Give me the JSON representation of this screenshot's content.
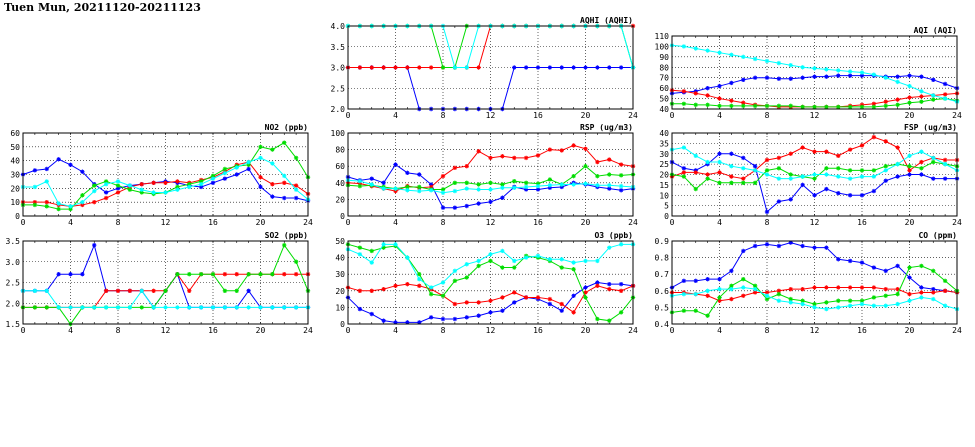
{
  "page": {
    "title": "Tuen Mun, 20211120-20211123"
  },
  "colors": {
    "series": [
      "#0000ff",
      "#ff0000",
      "#00dd00",
      "#00ffff"
    ],
    "grid": "#000000"
  },
  "chart_data": [
    {
      "type": "line",
      "title": "AQHI (AQHI)",
      "ylim": [
        2.0,
        4.0
      ],
      "yticks": [
        "2.0",
        "2.5",
        "3.0",
        "3.5",
        "4.0"
      ],
      "xticks": [
        "0",
        "4",
        "8",
        "12",
        "16",
        "20",
        "24"
      ],
      "series": [
        {
          "values": [
            3,
            3,
            3,
            3,
            3,
            3,
            2,
            2,
            2,
            2,
            2,
            2,
            2,
            2,
            3,
            3,
            3,
            3,
            3,
            3,
            3,
            3,
            3,
            3,
            3
          ]
        },
        {
          "values": [
            3,
            3,
            3,
            3,
            3,
            3,
            3,
            3,
            3,
            3,
            3,
            3,
            4,
            4,
            4,
            4,
            4,
            4,
            4,
            4,
            4,
            4,
            4,
            4,
            4
          ]
        },
        {
          "values": [
            4,
            4,
            4,
            4,
            4,
            4,
            4,
            4,
            3,
            3,
            4,
            4,
            4,
            4,
            4,
            4,
            4,
            4,
            4,
            4,
            4,
            4,
            4,
            4,
            3
          ]
        },
        {
          "values": [
            4,
            4,
            4,
            4,
            4,
            4,
            4,
            4,
            4,
            3,
            3,
            4,
            4,
            4,
            4,
            4,
            4,
            4,
            4,
            4,
            4,
            4,
            4,
            4,
            3
          ]
        }
      ]
    },
    {
      "type": "line",
      "title": "AQI (AQI)",
      "ylim": [
        40,
        110
      ],
      "yticks": [
        "40",
        "50",
        "60",
        "70",
        "80",
        "90",
        "100",
        "110"
      ],
      "xticks": [
        "0",
        "4",
        "8",
        "12",
        "16",
        "20",
        "24"
      ],
      "series": [
        {
          "values": [
            55,
            56,
            57,
            60,
            62,
            65,
            68,
            70,
            70,
            69,
            69,
            70,
            71,
            71,
            72,
            72,
            72,
            72,
            71,
            71,
            72,
            71,
            68,
            64,
            60
          ]
        },
        {
          "values": [
            58,
            57,
            55,
            53,
            50,
            48,
            46,
            44,
            43,
            42,
            42,
            42,
            42,
            42,
            42,
            43,
            44,
            45,
            47,
            49,
            51,
            52,
            53,
            54,
            55
          ]
        },
        {
          "values": [
            45,
            45,
            44,
            44,
            43,
            43,
            43,
            43,
            43,
            43,
            43,
            42,
            42,
            42,
            42,
            42,
            42,
            42,
            43,
            44,
            46,
            47,
            49,
            50,
            48
          ]
        },
        {
          "values": [
            101,
            100,
            98,
            96,
            94,
            92,
            90,
            88,
            86,
            84,
            82,
            80,
            79,
            78,
            77,
            76,
            75,
            73,
            70,
            66,
            62,
            57,
            53,
            50,
            47
          ]
        }
      ]
    },
    {
      "type": "line",
      "title": "NO2 (ppb)",
      "ylim": [
        0,
        60
      ],
      "yticks": [
        "0",
        "10",
        "20",
        "30",
        "40",
        "50",
        "60"
      ],
      "xticks": [
        "0",
        "4",
        "8",
        "12",
        "16",
        "20",
        "24"
      ],
      "series": [
        {
          "values": [
            30,
            33,
            34,
            41,
            37,
            32,
            23,
            17,
            20,
            22,
            23,
            24,
            25,
            24,
            22,
            21,
            24,
            27,
            30,
            34,
            21,
            14,
            13,
            13,
            11
          ]
        },
        {
          "values": [
            10,
            10,
            10,
            8,
            7,
            8,
            10,
            13,
            17,
            21,
            23,
            24,
            24,
            25,
            24,
            26,
            28,
            32,
            37,
            39,
            28,
            23,
            24,
            22,
            16
          ]
        },
        {
          "values": [
            8,
            8,
            7,
            5,
            5,
            15,
            22,
            25,
            22,
            19,
            17,
            16,
            17,
            21,
            23,
            25,
            29,
            34,
            36,
            37,
            50,
            48,
            53,
            42,
            28
          ]
        },
        {
          "values": [
            21,
            21,
            25,
            9,
            7,
            10,
            18,
            23,
            25,
            22,
            19,
            17,
            17,
            19,
            21,
            23,
            27,
            31,
            35,
            39,
            42,
            38,
            29,
            19,
            12
          ]
        }
      ]
    },
    {
      "type": "line",
      "title": "RSP (ug/m3)",
      "ylim": [
        0,
        100
      ],
      "yticks": [
        "0",
        "20",
        "40",
        "60",
        "80",
        "100"
      ],
      "xticks": [
        "0",
        "4",
        "8",
        "12",
        "16",
        "20",
        "24"
      ],
      "series": [
        {
          "values": [
            47,
            43,
            45,
            40,
            62,
            52,
            50,
            38,
            10,
            10,
            12,
            15,
            17,
            22,
            35,
            32,
            32,
            34,
            35,
            40,
            38,
            35,
            33,
            31,
            33
          ]
        },
        {
          "values": [
            40,
            39,
            36,
            33,
            30,
            36,
            34,
            35,
            48,
            58,
            60,
            78,
            70,
            72,
            70,
            70,
            73,
            80,
            79,
            85,
            81,
            65,
            68,
            62,
            60
          ]
        },
        {
          "values": [
            37,
            36,
            37,
            35,
            33,
            35,
            35,
            32,
            32,
            40,
            40,
            38,
            40,
            38,
            42,
            40,
            39,
            44,
            38,
            48,
            60,
            48,
            50,
            49,
            50
          ]
        },
        {
          "values": [
            43,
            42,
            38,
            33,
            33,
            31,
            30,
            31,
            28,
            30,
            33,
            32,
            32,
            34,
            34,
            35,
            36,
            37,
            38,
            38,
            39,
            37,
            37,
            36,
            35
          ]
        }
      ]
    },
    {
      "type": "line",
      "title": "FSP (ug/m3)",
      "ylim": [
        0,
        40
      ],
      "yticks": [
        "0",
        "5",
        "10",
        "15",
        "20",
        "25",
        "30",
        "35",
        "40"
      ],
      "xticks": [
        "0",
        "4",
        "8",
        "12",
        "16",
        "20",
        "24"
      ],
      "series": [
        {
          "values": [
            26,
            23,
            22,
            25,
            30,
            30,
            28,
            24,
            2,
            7,
            8,
            15,
            10,
            13,
            11,
            10,
            10,
            12,
            17,
            19,
            20,
            20,
            18,
            18,
            18
          ]
        },
        {
          "values": [
            19,
            21,
            21,
            20,
            21,
            19,
            18,
            22,
            27,
            28,
            30,
            33,
            31,
            31,
            29,
            32,
            34,
            38,
            36,
            33,
            22,
            26,
            28,
            27,
            27
          ]
        },
        {
          "values": [
            20,
            19,
            13,
            18,
            16,
            16,
            16,
            16,
            22,
            23,
            20,
            19,
            18,
            23,
            23,
            22,
            22,
            22,
            24,
            25,
            24,
            23,
            26,
            25,
            24
          ]
        },
        {
          "values": [
            32,
            33,
            29,
            26,
            26,
            24,
            23,
            22,
            20,
            18,
            18,
            19,
            20,
            20,
            19,
            18,
            19,
            19,
            22,
            25,
            29,
            31,
            28,
            25,
            22
          ]
        }
      ]
    },
    {
      "type": "line",
      "title": "SO2 (ppb)",
      "ylim": [
        1.5,
        3.5
      ],
      "yticks": [
        "1.5",
        "2.0",
        "2.5",
        "3.0",
        "3.5"
      ],
      "xticks": [
        "0",
        "4",
        "8",
        "12",
        "16",
        "20",
        "24"
      ],
      "series": [
        {
          "values": [
            2.3,
            2.3,
            2.3,
            2.7,
            2.7,
            2.7,
            3.4,
            2.3,
            2.3,
            2.3,
            2.3,
            1.9,
            2.3,
            2.7,
            1.9,
            1.9,
            1.9,
            1.9,
            1.9,
            2.3,
            1.9,
            1.9,
            1.9,
            1.9,
            1.9
          ]
        },
        {
          "values": [
            1.9,
            1.9,
            1.9,
            1.9,
            1.9,
            1.9,
            1.9,
            2.3,
            2.3,
            2.3,
            2.3,
            2.3,
            2.3,
            2.7,
            2.3,
            2.7,
            2.7,
            2.7,
            2.7,
            2.7,
            2.7,
            2.7,
            2.7,
            2.7,
            2.7
          ]
        },
        {
          "values": [
            1.9,
            1.9,
            1.9,
            1.9,
            1.5,
            1.9,
            1.9,
            1.9,
            1.9,
            1.9,
            1.9,
            1.9,
            2.3,
            2.7,
            2.7,
            2.7,
            2.7,
            2.3,
            2.3,
            2.7,
            2.7,
            2.7,
            3.4,
            3.0,
            2.3
          ]
        },
        {
          "values": [
            2.3,
            2.3,
            2.3,
            1.9,
            1.9,
            1.9,
            1.9,
            1.9,
            1.9,
            1.9,
            2.3,
            1.9,
            1.9,
            1.9,
            1.9,
            1.9,
            1.9,
            1.9,
            1.9,
            1.9,
            1.9,
            1.9,
            1.9,
            1.9,
            1.9
          ]
        }
      ]
    },
    {
      "type": "line",
      "title": "O3 (ppb)",
      "ylim": [
        0,
        50
      ],
      "yticks": [
        "0",
        "10",
        "20",
        "30",
        "40",
        "50"
      ],
      "xticks": [
        "0",
        "4",
        "8",
        "12",
        "16",
        "20",
        "24"
      ],
      "series": [
        {
          "values": [
            16,
            9,
            6,
            2,
            1,
            1,
            1,
            4,
            3,
            3,
            4,
            5,
            7,
            8,
            13,
            16,
            15,
            12,
            8,
            17,
            22,
            25,
            24,
            24,
            23
          ]
        },
        {
          "values": [
            22,
            20,
            20,
            21,
            23,
            24,
            23,
            21,
            17,
            12,
            13,
            13,
            14,
            16,
            19,
            16,
            16,
            15,
            12,
            7,
            19,
            23,
            21,
            20,
            23
          ]
        },
        {
          "values": [
            48,
            46,
            44,
            46,
            47,
            40,
            30,
            18,
            17,
            26,
            28,
            35,
            38,
            34,
            34,
            41,
            40,
            38,
            34,
            33,
            16,
            3,
            2,
            7,
            16
          ]
        },
        {
          "values": [
            45,
            42,
            37,
            48,
            48,
            40,
            27,
            22,
            25,
            32,
            36,
            38,
            42,
            44,
            38,
            40,
            41,
            39,
            39,
            37,
            38,
            38,
            46,
            48,
            48
          ]
        }
      ]
    },
    {
      "type": "line",
      "title": "CO (ppm)",
      "ylim": [
        0.4,
        0.9
      ],
      "yticks": [
        "0.4",
        "0.5",
        "0.6",
        "0.7",
        "0.8",
        "0.9"
      ],
      "xticks": [
        "0",
        "4",
        "8",
        "12",
        "16",
        "20",
        "24"
      ],
      "series": [
        {
          "values": [
            0.62,
            0.66,
            0.66,
            0.67,
            0.67,
            0.72,
            0.84,
            0.87,
            0.88,
            0.87,
            0.89,
            0.87,
            0.86,
            0.86,
            0.79,
            0.78,
            0.77,
            0.74,
            0.72,
            0.75,
            0.68,
            0.62,
            0.61,
            0.6,
            0.59
          ]
        },
        {
          "values": [
            0.59,
            0.59,
            0.58,
            0.57,
            0.54,
            0.55,
            0.57,
            0.59,
            0.59,
            0.6,
            0.61,
            0.61,
            0.62,
            0.62,
            0.62,
            0.62,
            0.62,
            0.62,
            0.61,
            0.61,
            0.58,
            0.59,
            0.59,
            0.6,
            0.59
          ]
        },
        {
          "values": [
            0.47,
            0.48,
            0.48,
            0.45,
            0.56,
            0.63,
            0.67,
            0.63,
            0.55,
            0.58,
            0.55,
            0.54,
            0.52,
            0.53,
            0.54,
            0.54,
            0.54,
            0.56,
            0.57,
            0.58,
            0.74,
            0.75,
            0.72,
            0.66,
            0.6
          ]
        },
        {
          "values": [
            0.57,
            0.58,
            0.58,
            0.6,
            0.61,
            0.61,
            0.62,
            0.61,
            0.57,
            0.54,
            0.53,
            0.52,
            0.5,
            0.49,
            0.5,
            0.51,
            0.52,
            0.51,
            0.51,
            0.52,
            0.54,
            0.56,
            0.55,
            0.51,
            0.49
          ]
        }
      ]
    }
  ]
}
